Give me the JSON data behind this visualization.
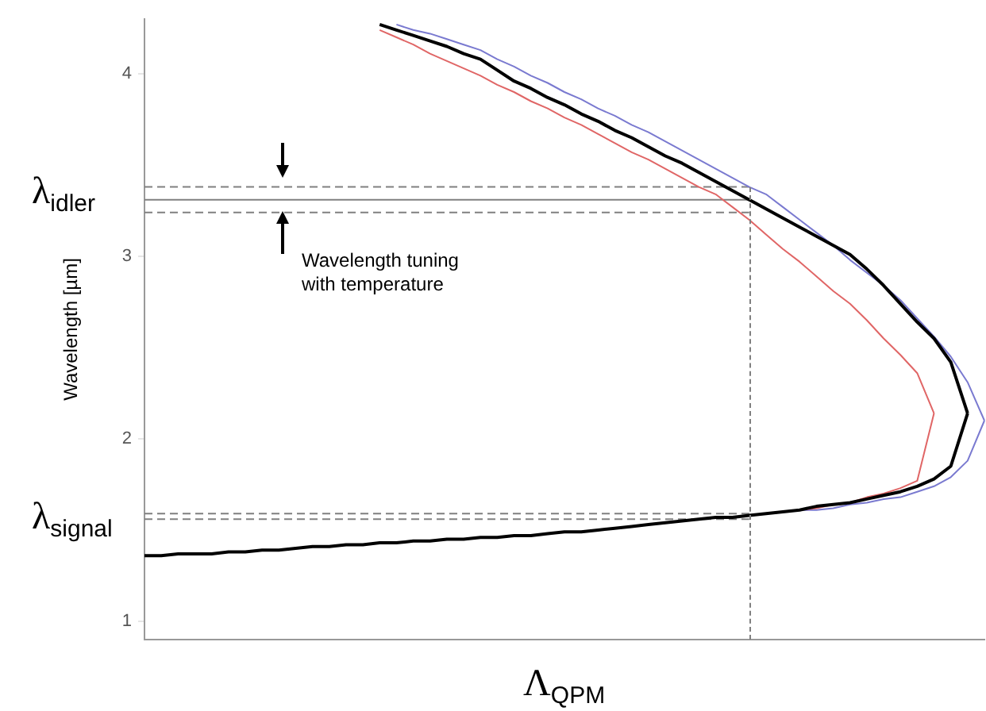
{
  "chart_data": {
    "type": "line",
    "xlabel": "Λ$_{QPM}$",
    "ylabel": "Wavelength [µm]",
    "categories": [
      null,
      null,
      null,
      null,
      null,
      null,
      null,
      null,
      null,
      null,
      null,
      null,
      null,
      null,
      null,
      null,
      null,
      null,
      null,
      null,
      null,
      null,
      null,
      null,
      null,
      null,
      null,
      null,
      null,
      null,
      null,
      null,
      null,
      null,
      null,
      null,
      null,
      null,
      null,
      null,
      null,
      null,
      null,
      null,
      null,
      null,
      null,
      null,
      null,
      null,
      null
    ],
    "ylim": [
      0.9,
      4.3
    ],
    "yticks": [
      1,
      2,
      3,
      4
    ],
    "tick_labels": "y",
    "grid": false,
    "marker": "none",
    "annotations": [
      "λ$_{idler}$",
      "λ$_{signal}$",
      "Wavelength tuning\nwith temperature"
    ],
    "series": [
      {
        "color": "#000000",
        "values": [
          null,
          null,
          null,
          null,
          null,
          null,
          null,
          null,
          null,
          null,
          null,
          null,
          null,
          null,
          4.27,
          4.24,
          4.21,
          4.18,
          4.15,
          4.11,
          4.08,
          4.02,
          3.96,
          3.92,
          3.87,
          3.83,
          3.78,
          3.74,
          3.69,
          3.65,
          3.6,
          3.55,
          3.51,
          3.46,
          3.41,
          3.36,
          3.31,
          3.26,
          3.21,
          3.16,
          3.11,
          3.06,
          3.01,
          2.93,
          2.84,
          2.74,
          2.64,
          2.55,
          2.42,
          2.14,
          null
        ]
      },
      {
        "color": "#000000",
        "values": [
          1.36,
          1.36,
          1.37,
          1.37,
          1.37,
          1.38,
          1.38,
          1.39,
          1.39,
          1.4,
          1.41,
          1.41,
          1.42,
          1.42,
          1.43,
          1.43,
          1.44,
          1.44,
          1.45,
          1.45,
          1.46,
          1.46,
          1.47,
          1.47,
          1.48,
          1.49,
          1.49,
          1.5,
          1.51,
          1.52,
          1.53,
          1.54,
          1.55,
          1.56,
          1.57,
          1.57,
          1.58,
          1.59,
          1.6,
          1.61,
          1.63,
          1.64,
          1.65,
          1.67,
          1.69,
          1.71,
          1.74,
          1.78,
          1.85,
          2.14,
          null
        ]
      },
      {
        "color": "#e06666",
        "values": [
          null,
          null,
          null,
          null,
          null,
          null,
          null,
          null,
          null,
          null,
          null,
          null,
          null,
          null,
          4.24,
          4.2,
          4.16,
          4.11,
          4.07,
          4.03,
          3.99,
          3.94,
          3.9,
          3.85,
          3.81,
          3.76,
          3.72,
          3.67,
          3.62,
          3.57,
          3.53,
          3.48,
          3.43,
          3.38,
          3.34,
          3.27,
          3.2,
          3.12,
          3.04,
          2.97,
          2.89,
          2.81,
          2.74,
          2.65,
          2.55,
          2.46,
          2.36,
          2.14,
          null,
          null,
          null
        ]
      },
      {
        "color": "#e06666",
        "values": [
          null,
          null,
          null,
          null,
          null,
          null,
          null,
          null,
          null,
          null,
          null,
          null,
          null,
          null,
          null,
          null,
          null,
          null,
          null,
          null,
          null,
          null,
          null,
          null,
          null,
          null,
          null,
          null,
          null,
          null,
          null,
          null,
          null,
          null,
          null,
          null,
          null,
          null,
          null,
          1.61,
          1.62,
          1.64,
          1.65,
          1.68,
          1.7,
          1.73,
          1.77,
          2.14,
          null,
          null,
          null
        ]
      },
      {
        "color": "#7a7ad0",
        "values": [
          null,
          null,
          null,
          null,
          null,
          null,
          null,
          null,
          null,
          null,
          null,
          null,
          null,
          null,
          null,
          4.27,
          4.24,
          4.22,
          4.19,
          4.16,
          4.13,
          4.08,
          4.04,
          3.99,
          3.95,
          3.9,
          3.86,
          3.81,
          3.77,
          3.72,
          3.68,
          3.63,
          3.58,
          3.53,
          3.48,
          3.43,
          3.38,
          3.34,
          3.27,
          3.2,
          3.13,
          3.06,
          2.98,
          2.91,
          2.84,
          2.76,
          2.66,
          2.56,
          2.45,
          2.31,
          2.1
        ]
      },
      {
        "color": "#7a7ad0",
        "values": [
          null,
          null,
          null,
          null,
          null,
          null,
          null,
          null,
          null,
          null,
          null,
          null,
          null,
          null,
          null,
          null,
          null,
          null,
          null,
          null,
          null,
          null,
          null,
          null,
          null,
          null,
          null,
          null,
          null,
          null,
          null,
          null,
          null,
          null,
          null,
          null,
          null,
          null,
          1.6,
          1.61,
          1.61,
          1.62,
          1.64,
          1.65,
          1.67,
          1.68,
          1.71,
          1.74,
          1.79,
          1.88,
          2.1
        ]
      },
      {
        "color": "#808080",
        "line_style": "dashed",
        "values": [
          3.38,
          3.38,
          3.38,
          3.38,
          3.38,
          3.38,
          3.38,
          3.38,
          3.38,
          3.38,
          3.38,
          3.38,
          3.38,
          3.38,
          3.38,
          3.38,
          3.38,
          3.38,
          3.38,
          3.38,
          3.38,
          3.38,
          3.38,
          3.38,
          3.38,
          3.38,
          3.38,
          3.38,
          3.38,
          3.38,
          3.38,
          3.38,
          3.38,
          3.38,
          3.38,
          3.38,
          3.38,
          null,
          null,
          null,
          null,
          null,
          null,
          null,
          null,
          null,
          null,
          null,
          null,
          null,
          null
        ]
      },
      {
        "color": "#808080",
        "line_style": "solid",
        "values": [
          3.31,
          3.31,
          3.31,
          3.31,
          3.31,
          3.31,
          3.31,
          3.31,
          3.31,
          3.31,
          3.31,
          3.31,
          3.31,
          3.31,
          3.31,
          3.31,
          3.31,
          3.31,
          3.31,
          3.31,
          3.31,
          3.31,
          3.31,
          3.31,
          3.31,
          3.31,
          3.31,
          3.31,
          3.31,
          3.31,
          3.31,
          3.31,
          3.31,
          3.31,
          3.31,
          3.31,
          3.31,
          null,
          null,
          null,
          null,
          null,
          null,
          null,
          null,
          null,
          null,
          null,
          null,
          null,
          null
        ]
      },
      {
        "color": "#808080",
        "line_style": "dashed",
        "values": [
          3.24,
          3.24,
          3.24,
          3.24,
          3.24,
          3.24,
          3.24,
          3.24,
          3.24,
          3.24,
          3.24,
          3.24,
          3.24,
          3.24,
          3.24,
          3.24,
          3.24,
          3.24,
          3.24,
          3.24,
          3.24,
          3.24,
          3.24,
          3.24,
          3.24,
          3.24,
          3.24,
          3.24,
          3.24,
          3.24,
          3.24,
          3.24,
          3.24,
          3.24,
          3.24,
          3.24,
          3.24,
          null,
          null,
          null,
          null,
          null,
          null,
          null,
          null,
          null,
          null,
          null,
          null,
          null,
          null
        ]
      },
      {
        "color": "#808080",
        "line_style": "dashed",
        "values": [
          1.59,
          1.59,
          1.59,
          1.59,
          1.59,
          1.59,
          1.59,
          1.59,
          1.59,
          1.59,
          1.59,
          1.59,
          1.59,
          1.59,
          1.59,
          1.59,
          1.59,
          1.59,
          1.59,
          1.59,
          1.59,
          1.59,
          1.59,
          1.59,
          1.59,
          1.59,
          1.59,
          1.59,
          1.59,
          1.59,
          1.59,
          1.59,
          1.59,
          1.59,
          1.59,
          1.59,
          1.59,
          null,
          null,
          null,
          null,
          null,
          null,
          null,
          null,
          null,
          null,
          null,
          null,
          null,
          null
        ]
      },
      {
        "color": "#808080",
        "line_style": "dashed",
        "values": [
          1.56,
          1.56,
          1.56,
          1.56,
          1.56,
          1.56,
          1.56,
          1.56,
          1.56,
          1.56,
          1.56,
          1.56,
          1.56,
          1.56,
          1.56,
          1.56,
          1.56,
          1.56,
          1.56,
          1.56,
          1.56,
          1.56,
          1.56,
          1.56,
          1.56,
          1.56,
          1.56,
          1.56,
          1.56,
          1.56,
          1.56,
          1.56,
          1.56,
          1.56,
          1.56,
          1.56,
          1.56,
          null,
          null,
          null,
          null,
          null,
          null,
          null,
          null,
          null,
          null,
          null,
          null,
          null,
          null
        ]
      }
    ]
  }
}
